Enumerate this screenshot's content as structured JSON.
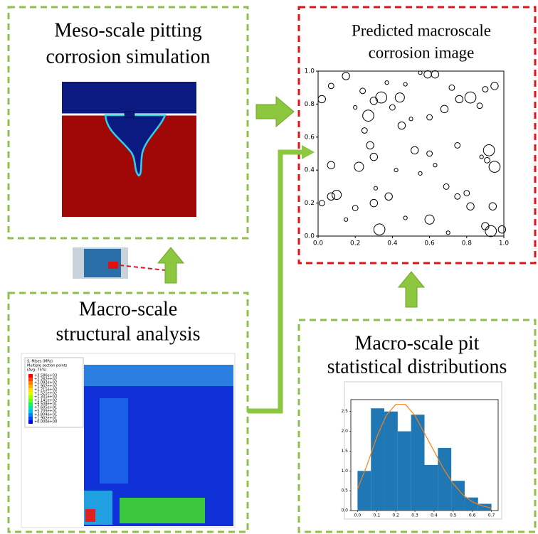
{
  "meso_panel": {
    "title_lines": [
      "Meso-scale pitting",
      "corrosion simulation"
    ]
  },
  "prediction_panel": {
    "title_lines": [
      "Predicted macroscale",
      "corrosion image"
    ],
    "chart": {
      "type": "scatter",
      "x": [
        0.02,
        0.07,
        0.15,
        0.2,
        0.27,
        0.24,
        0.3,
        0.34,
        0.37,
        0.4,
        0.44,
        0.47,
        0.55,
        0.59,
        0.63,
        0.72,
        0.76,
        0.82,
        0.9,
        0.95,
        0.87,
        0.68,
        0.6,
        0.45,
        0.5,
        0.25,
        0.28,
        0.3,
        0.22,
        0.07,
        0.07,
        0.1,
        0.02,
        0.15,
        0.2,
        0.3,
        0.38,
        0.31,
        0.42,
        0.55,
        0.52,
        0.6,
        0.63,
        0.69,
        0.75,
        0.8,
        0.92,
        0.95,
        0.91,
        0.88,
        0.94,
        0.9,
        0.93,
        0.99,
        0.6,
        0.47,
        0.33,
        0.7,
        0.82,
        0.75
      ],
      "y": [
        0.83,
        0.91,
        0.97,
        0.78,
        0.73,
        0.88,
        0.82,
        0.84,
        0.93,
        0.78,
        0.84,
        0.92,
        0.99,
        0.98,
        0.98,
        0.9,
        0.83,
        0.84,
        0.89,
        0.91,
        0.79,
        0.77,
        0.72,
        0.67,
        0.71,
        0.64,
        0.55,
        0.48,
        0.42,
        0.43,
        0.24,
        0.25,
        0.2,
        0.1,
        0.17,
        0.2,
        0.24,
        0.29,
        0.4,
        0.38,
        0.52,
        0.5,
        0.43,
        0.3,
        0.24,
        0.26,
        0.52,
        0.42,
        0.46,
        0.48,
        0.18,
        0.06,
        0.03,
        0.04,
        0.1,
        0.11,
        0.04,
        0.02,
        0.18,
        0.55
      ],
      "r": [
        0.02,
        0.015,
        0.02,
        0.01,
        0.03,
        0.015,
        0.02,
        0.03,
        0.01,
        0.015,
        0.025,
        0.01,
        0.01,
        0.02,
        0.02,
        0.015,
        0.02,
        0.03,
        0.015,
        0.02,
        0.015,
        0.02,
        0.015,
        0.02,
        0.01,
        0.015,
        0.02,
        0.02,
        0.025,
        0.02,
        0.02,
        0.025,
        0.015,
        0.01,
        0.015,
        0.02,
        0.02,
        0.01,
        0.01,
        0.01,
        0.02,
        0.015,
        0.01,
        0.015,
        0.015,
        0.015,
        0.03,
        0.03,
        0.015,
        0.01,
        0.02,
        0.02,
        0.03,
        0.02,
        0.025,
        0.01,
        0.03,
        0.01,
        0.02,
        0.015
      ],
      "color": "#000000",
      "xlim": [
        0,
        1
      ],
      "ylim": [
        0,
        1
      ],
      "xticks": [
        {
          "value": 0,
          "label": "0.0"
        },
        0.2,
        0.4,
        0.6,
        0.8,
        {
          "value": 1,
          "label": "1.0"
        }
      ],
      "yticks": [
        {
          "value": 0,
          "label": "0.0"
        },
        0.2,
        0.4,
        0.6,
        0.8,
        {
          "value": 1,
          "label": "1.0"
        }
      ]
    }
  },
  "structural_panel": {
    "title_lines": [
      "Macro-scale",
      "structural analysis"
    ],
    "legend_header": [
      "S, Mises (MPa)",
      "Multiple section points",
      "(Avg: 75%)"
    ],
    "legend_values": [
      "+3.586e+03",
      "+2.282e+02",
      "+2.092e+02",
      "+1.902e+02",
      "+1.711e+02",
      "+1.521e+02",
      "+1.331e+02",
      "+1.141e+02",
      "+9.508e+01",
      "+7.605e+01",
      "+5.705e+01",
      "+3.804e+01",
      "+1.902e+01",
      "+0.000e+00"
    ]
  },
  "statistics_panel": {
    "title_lines": [
      "Macro-scale pit",
      "statistical distributions"
    ],
    "chart": {
      "type": "histogram",
      "bins": [
        0,
        0.07,
        0.14,
        0.21,
        0.28,
        0.35,
        0.42,
        0.49,
        0.56,
        0.63,
        0.7
      ],
      "counts": [
        1.0,
        2.58,
        2.5,
        2.0,
        2.42,
        1.15,
        1.58,
        0.75,
        0.33,
        0.17
      ],
      "color": "#1f77b4",
      "curve": {
        "x": [
          0,
          0.05,
          0.1,
          0.15,
          0.2,
          0.25,
          0.3,
          0.35,
          0.4,
          0.45,
          0.5,
          0.55,
          0.6,
          0.65,
          0.7
        ],
        "y": [
          0.55,
          1.15,
          1.85,
          2.4,
          2.68,
          2.68,
          2.4,
          1.95,
          1.5,
          1.05,
          0.68,
          0.4,
          0.22,
          0.12,
          0.06
        ],
        "color": "#ff7f0e"
      },
      "xlim": [
        -0.035,
        0.735
      ],
      "ylim": [
        0,
        2.8
      ],
      "xticks": [
        {
          "value": 0,
          "label": "0.0"
        },
        0.1,
        0.2,
        0.3,
        0.4,
        0.5,
        0.6,
        0.7
      ],
      "yticks": [
        {
          "value": 0,
          "label": "0.0"
        },
        0.5,
        {
          "value": 1,
          "label": "1.0"
        },
        1.5,
        {
          "value": 2,
          "label": "2.0"
        },
        2.5
      ]
    }
  }
}
